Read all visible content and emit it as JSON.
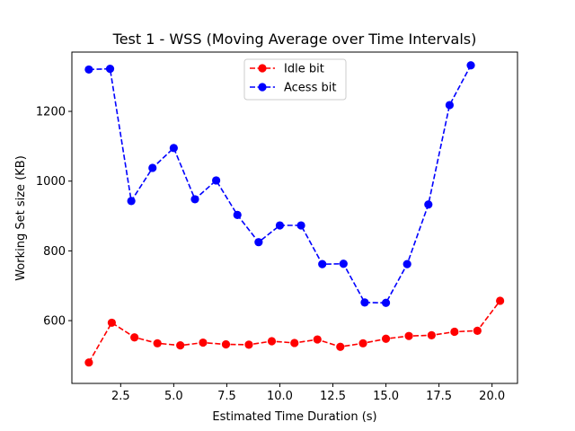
{
  "chart_data": {
    "type": "line",
    "title": "Test 1 - WSS (Moving Average over Time Intervals)",
    "xlabel": "Estimated Time Duration (s)",
    "ylabel": "Working Set size (KB)",
    "xlim": [
      0.2,
      21.2
    ],
    "ylim": [
      420,
      1370
    ],
    "xticks": [
      2.5,
      5.0,
      7.5,
      10.0,
      12.5,
      15.0,
      17.5,
      20.0
    ],
    "xtick_labels": [
      "2.5",
      "5.0",
      "7.5",
      "10.0",
      "12.5",
      "15.0",
      "17.5",
      "20.0"
    ],
    "yticks": [
      600,
      800,
      1000,
      1200
    ],
    "ytick_labels": [
      "600",
      "800",
      "1000",
      "1200"
    ],
    "grid": false,
    "legend_position": "top-center",
    "series": [
      {
        "name": "Idle bit",
        "color": "#ff0000",
        "line_style": "dashed",
        "marker": "circle",
        "x": [
          1.0,
          2.08,
          3.15,
          4.23,
          5.31,
          6.38,
          7.46,
          8.54,
          9.62,
          10.69,
          11.77,
          12.85,
          13.92,
          15.0,
          16.08,
          17.15,
          18.23,
          19.31,
          20.38
        ],
        "y": [
          480,
          594,
          552,
          535,
          529,
          537,
          532,
          531,
          541,
          536,
          546,
          525,
          535,
          548,
          556,
          558,
          568,
          571,
          657
        ]
      },
      {
        "name": "Acess bit",
        "color": "#0000ff",
        "line_style": "dashed",
        "marker": "circle",
        "x": [
          1.0,
          2.0,
          3.0,
          4.0,
          5.0,
          6.0,
          7.0,
          8.0,
          9.0,
          10.0,
          11.0,
          12.0,
          13.0,
          14.0,
          15.0,
          16.0,
          17.0,
          18.0,
          19.0
        ],
        "y": [
          1320,
          1322,
          943,
          1038,
          1095,
          948,
          1002,
          903,
          825,
          873,
          873,
          762,
          763,
          652,
          651,
          762,
          933,
          1218,
          1332
        ]
      }
    ]
  }
}
